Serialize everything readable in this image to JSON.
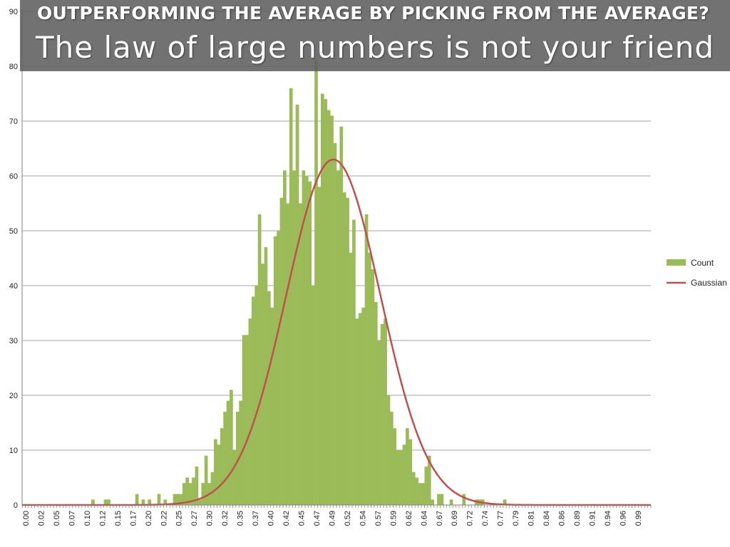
{
  "slide": {
    "heading": "OUTPERFORMING THE AVERAGE BY PICKING FROM THE AVERAGE?",
    "subtitle": "The law of large numbers is not your friend"
  },
  "colors": {
    "bar": "#9bbb59",
    "curve": "#c0504d",
    "grid": "#a6a6a6",
    "title_band": "#5f5f5f"
  },
  "chart_data": {
    "type": "bar",
    "title": "",
    "xlabel": "",
    "ylabel": "",
    "ylim": [
      0,
      90
    ],
    "yticks": [
      "0",
      "10",
      "20",
      "30",
      "40",
      "50",
      "60",
      "70",
      "80",
      "90"
    ],
    "grid": "horizontal",
    "legend_position": "right",
    "bin_width": 0.005,
    "x_tick_labels": [
      "0.00",
      "0.02",
      "0.05",
      "0.07",
      "0.10",
      "0.12",
      "0.15",
      "0.17",
      "0.20",
      "0.22",
      "0.25",
      "0.27",
      "0.30",
      "0.32",
      "0.35",
      "0.37",
      "0.40",
      "0.42",
      "0.45",
      "0.47",
      "0.49",
      "0.52",
      "0.54",
      "0.57",
      "0.59",
      "0.62",
      "0.64",
      "0.67",
      "0.69",
      "0.72",
      "0.74",
      "0.77",
      "0.79",
      "0.81",
      "0.84",
      "0.86",
      "0.89",
      "0.91",
      "0.94",
      "0.96",
      "0.99"
    ],
    "series": [
      {
        "name": "Count",
        "type": "bar",
        "x_start": 0.0,
        "values": [
          0,
          0,
          0,
          0,
          0,
          0,
          0,
          0,
          0,
          0,
          0,
          0,
          0,
          0,
          0,
          0,
          0,
          0,
          0,
          0,
          0,
          0,
          1,
          0,
          0,
          0,
          1,
          1,
          0,
          0,
          0,
          0,
          0,
          0,
          0,
          0,
          2,
          0,
          1,
          0,
          1,
          0,
          0,
          2,
          0,
          1,
          0,
          0,
          2,
          2,
          2,
          4,
          5,
          4,
          5,
          7,
          1,
          4,
          9,
          4,
          6,
          12,
          11,
          14,
          17,
          19,
          21,
          10,
          17,
          19,
          31,
          31,
          34,
          38,
          40,
          53,
          44,
          47,
          39,
          36,
          49,
          50,
          56,
          61,
          55,
          76,
          61,
          73,
          55,
          61,
          60,
          59,
          40,
          81,
          58,
          75,
          74,
          72,
          71,
          66,
          61,
          69,
          57,
          56,
          46,
          52,
          34,
          35,
          36,
          53,
          46,
          43,
          37,
          30,
          33,
          34,
          20,
          17,
          14,
          10,
          10,
          11,
          14,
          12,
          6,
          5,
          4,
          4,
          7,
          9,
          1,
          0,
          2,
          2,
          0,
          0,
          1,
          0,
          0,
          0,
          2,
          0,
          0,
          0,
          1,
          1,
          1,
          0,
          0,
          0,
          0,
          0,
          0,
          1,
          0,
          0,
          0,
          0,
          0,
          0,
          0,
          0,
          0,
          0,
          0,
          0,
          0,
          0,
          0,
          0,
          0,
          0,
          0,
          0,
          0,
          0,
          0,
          0,
          0,
          0,
          0,
          0,
          0,
          0,
          0,
          0,
          0,
          0,
          0,
          0,
          0,
          0,
          0,
          0,
          0,
          0,
          0,
          0,
          0,
          0
        ]
      },
      {
        "name": "Gaussian",
        "type": "line",
        "mean": 0.495,
        "sd": 0.075,
        "peak": 63
      }
    ]
  }
}
